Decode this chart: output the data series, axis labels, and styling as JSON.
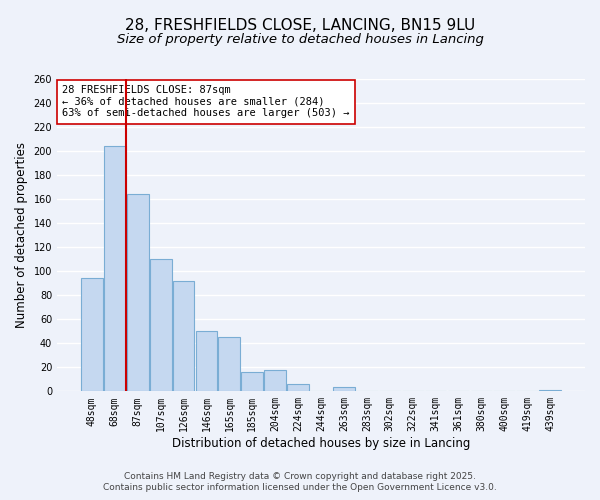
{
  "title": "28, FRESHFIELDS CLOSE, LANCING, BN15 9LU",
  "subtitle": "Size of property relative to detached houses in Lancing",
  "xlabel": "Distribution of detached houses by size in Lancing",
  "ylabel": "Number of detached properties",
  "categories": [
    "48sqm",
    "68sqm",
    "87sqm",
    "107sqm",
    "126sqm",
    "146sqm",
    "165sqm",
    "185sqm",
    "204sqm",
    "224sqm",
    "244sqm",
    "263sqm",
    "283sqm",
    "302sqm",
    "322sqm",
    "341sqm",
    "361sqm",
    "380sqm",
    "400sqm",
    "419sqm",
    "439sqm"
  ],
  "values": [
    94,
    204,
    164,
    110,
    92,
    50,
    45,
    16,
    18,
    6,
    0,
    4,
    0,
    0,
    0,
    0,
    0,
    0,
    0,
    0,
    1
  ],
  "bar_color": "#c5d8f0",
  "bar_edge_color": "#7aadd4",
  "property_line_x": 1.5,
  "property_line_color": "#cc0000",
  "ylim": [
    0,
    260
  ],
  "yticks": [
    0,
    20,
    40,
    60,
    80,
    100,
    120,
    140,
    160,
    180,
    200,
    220,
    240,
    260
  ],
  "annotation_line1": "28 FRESHFIELDS CLOSE: 87sqm",
  "annotation_line2": "← 36% of detached houses are smaller (284)",
  "annotation_line3": "63% of semi-detached houses are larger (503) →",
  "annotation_box_color": "#ffffff",
  "annotation_box_edge_color": "#cc0000",
  "footer_line1": "Contains HM Land Registry data © Crown copyright and database right 2025.",
  "footer_line2": "Contains public sector information licensed under the Open Government Licence v3.0.",
  "background_color": "#eef2fa",
  "grid_color": "#ffffff",
  "title_fontsize": 11,
  "subtitle_fontsize": 9.5,
  "tick_fontsize": 7,
  "label_fontsize": 8.5,
  "footer_fontsize": 6.5,
  "annotation_fontsize": 7.5
}
